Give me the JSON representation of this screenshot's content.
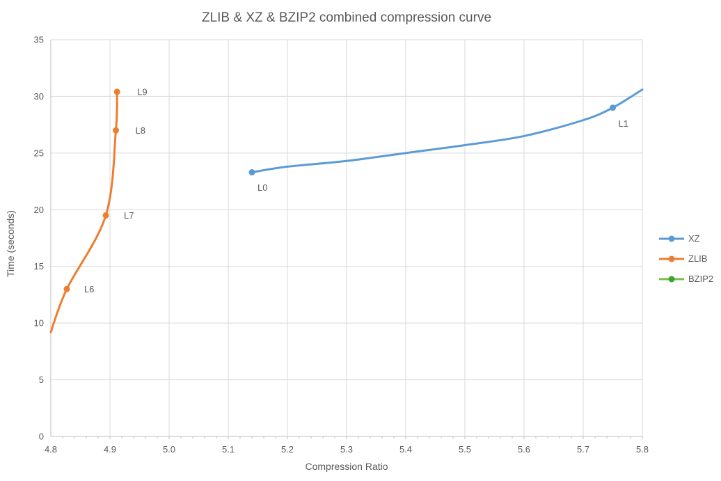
{
  "chart_data": {
    "type": "line",
    "title": "ZLIB & XZ & BZIP2 combined compression curve",
    "xlabel": "Compression Ratio",
    "ylabel": "Time (seconds)",
    "xlim": [
      4.8,
      5.8
    ],
    "ylim": [
      0,
      35
    ],
    "x_ticks": [
      4.8,
      4.9,
      5.0,
      5.1,
      5.2,
      5.3,
      5.4,
      5.5,
      5.6,
      5.7,
      5.8
    ],
    "x_tick_labels": [
      "4.8",
      "4.9",
      "5.0",
      "5.1",
      "5.2",
      "5.3",
      "5.4",
      "5.5",
      "5.6",
      "5.7",
      "5.8"
    ],
    "y_ticks": [
      0,
      5,
      10,
      15,
      20,
      25,
      30,
      35
    ],
    "y_tick_labels": [
      "0",
      "5",
      "10",
      "15",
      "20",
      "25",
      "30",
      "35"
    ],
    "grid": true,
    "legend_position": "right",
    "colors": {
      "grid": "#D9D9D9",
      "axis": "#BFBFBF",
      "text": "#595959"
    },
    "series": [
      {
        "name": "XZ",
        "color": "#5B9BD5",
        "labeled_points": [
          {
            "label": "L0",
            "x": 5.14,
            "y": 23.3,
            "label_offset": [
              8,
              22
            ]
          },
          {
            "label": "L1",
            "x": 5.75,
            "y": 29.0,
            "label_offset": [
              8,
              23
            ]
          }
        ],
        "curve": [
          [
            5.14,
            23.3
          ],
          [
            5.2,
            23.8
          ],
          [
            5.3,
            24.3
          ],
          [
            5.4,
            25.0
          ],
          [
            5.5,
            25.7
          ],
          [
            5.6,
            26.5
          ],
          [
            5.7,
            27.9
          ],
          [
            5.75,
            29.0
          ],
          [
            5.8,
            30.6
          ]
        ]
      },
      {
        "name": "ZLIB",
        "color": "#ED7D31",
        "labeled_points": [
          {
            "label": "L6",
            "x": 4.827,
            "y": 13.0,
            "label_offset": [
              25,
              0
            ]
          },
          {
            "label": "L7",
            "x": 4.893,
            "y": 19.5,
            "label_offset": [
              26,
              0
            ]
          },
          {
            "label": "L8",
            "x": 4.91,
            "y": 27.0,
            "label_offset": [
              28,
              0
            ]
          },
          {
            "label": "L9",
            "x": 4.912,
            "y": 30.4,
            "label_offset": [
              29,
              0
            ]
          }
        ],
        "curve": [
          [
            4.8,
            9.2
          ],
          [
            4.827,
            13.0
          ],
          [
            4.893,
            19.5
          ],
          [
            4.91,
            27.0
          ],
          [
            4.912,
            30.4
          ]
        ]
      },
      {
        "name": "BZIP2",
        "color": "#76C043",
        "marker_color": "#3CA233",
        "labeled_points": [],
        "curve": []
      }
    ]
  }
}
